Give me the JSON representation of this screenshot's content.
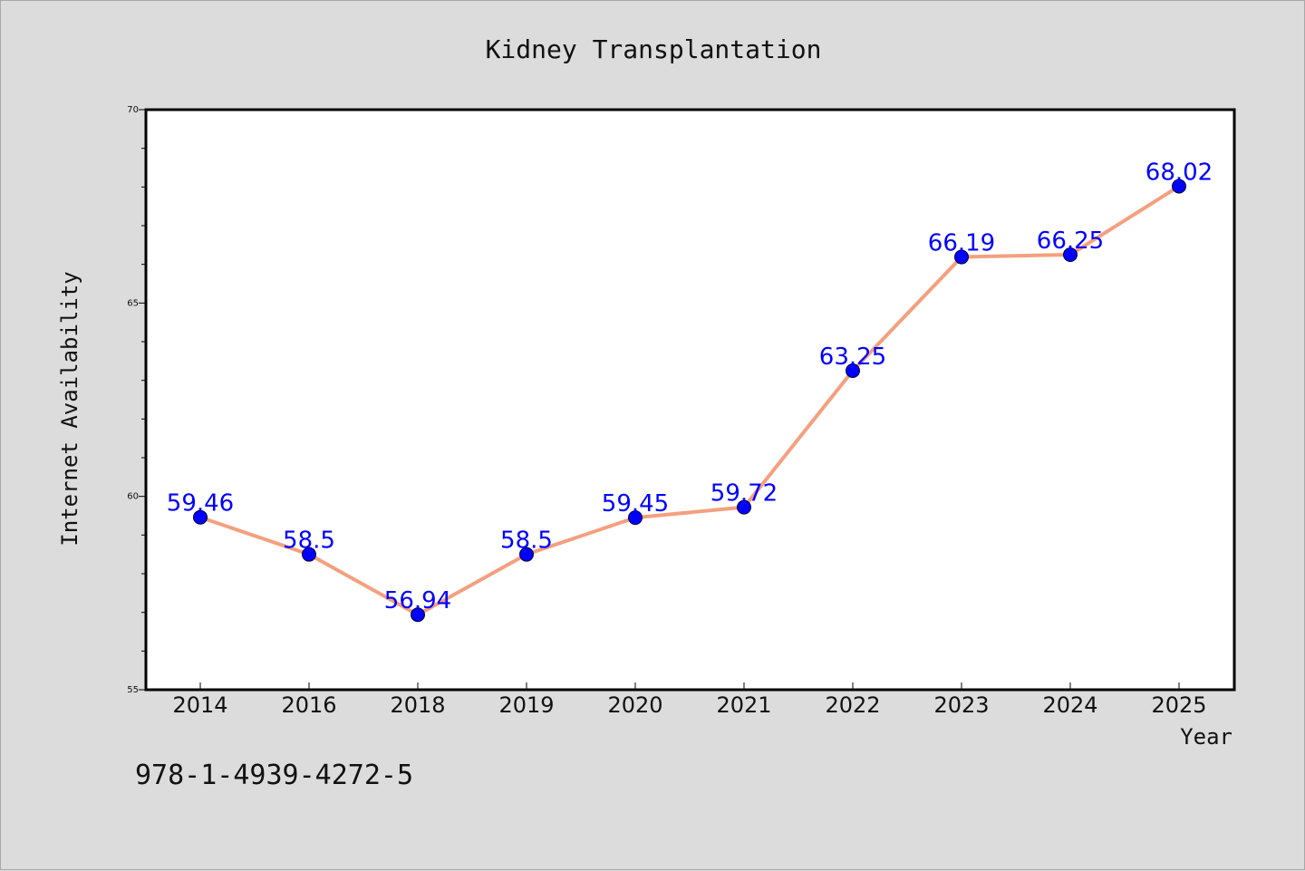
{
  "chart_data": {
    "type": "line",
    "title": "Kidney Transplantation",
    "xlabel": "Year",
    "ylabel": "Internet Availability",
    "categories": [
      "2014",
      "2016",
      "2018",
      "2019",
      "2020",
      "2021",
      "2022",
      "2023",
      "2024",
      "2025"
    ],
    "series": [
      {
        "values": [
          59.46,
          58.5,
          56.94,
          58.5,
          59.45,
          59.72,
          63.25,
          66.19,
          66.25,
          68.02
        ],
        "labels": [
          "59.46",
          "58.5",
          "56.94",
          "58.5",
          "59.45",
          "59.72",
          "63.25",
          "66.19",
          "66.25",
          "68.02"
        ]
      }
    ],
    "ylim": [
      55,
      70
    ],
    "yticks": [
      55,
      60,
      65,
      70
    ],
    "grid": false,
    "line_color": "#f4a07f",
    "marker_color": "#0000ff",
    "label_color": "#0000ff"
  },
  "footnote": "978-1-4939-4272-5"
}
